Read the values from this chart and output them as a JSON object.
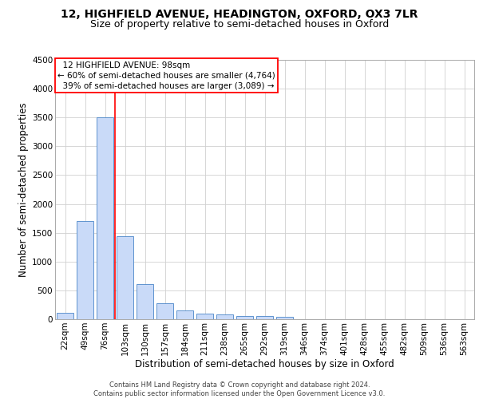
{
  "title_line1": "12, HIGHFIELD AVENUE, HEADINGTON, OXFORD, OX3 7LR",
  "title_line2": "Size of property relative to semi-detached houses in Oxford",
  "xlabel": "Distribution of semi-detached houses by size in Oxford",
  "ylabel": "Number of semi-detached properties",
  "footer_line1": "Contains HM Land Registry data © Crown copyright and database right 2024.",
  "footer_line2": "Contains public sector information licensed under the Open Government Licence v3.0.",
  "bar_labels": [
    "22sqm",
    "49sqm",
    "76sqm",
    "103sqm",
    "130sqm",
    "157sqm",
    "184sqm",
    "211sqm",
    "238sqm",
    "265sqm",
    "292sqm",
    "319sqm",
    "346sqm",
    "374sqm",
    "401sqm",
    "428sqm",
    "455sqm",
    "482sqm",
    "509sqm",
    "536sqm",
    "563sqm"
  ],
  "bar_values": [
    110,
    1700,
    3500,
    1440,
    610,
    280,
    155,
    100,
    90,
    60,
    50,
    35,
    0,
    0,
    0,
    0,
    0,
    0,
    0,
    0,
    0
  ],
  "bar_color": "#c9daf8",
  "bar_edge_color": "#4a86c8",
  "property_label": "12 HIGHFIELD AVENUE: 98sqm",
  "pct_smaller": 60,
  "pct_smaller_count": "4,764",
  "pct_larger": 39,
  "pct_larger_count": "3,089",
  "red_line_x": 2.5,
  "ylim": [
    0,
    4500
  ],
  "yticks": [
    0,
    500,
    1000,
    1500,
    2000,
    2500,
    3000,
    3500,
    4000,
    4500
  ],
  "grid_color": "#d0d0d0",
  "title_fontsize": 10,
  "subtitle_fontsize": 9,
  "axis_label_fontsize": 8.5,
  "tick_fontsize": 7.5,
  "annotation_fontsize": 7.5
}
